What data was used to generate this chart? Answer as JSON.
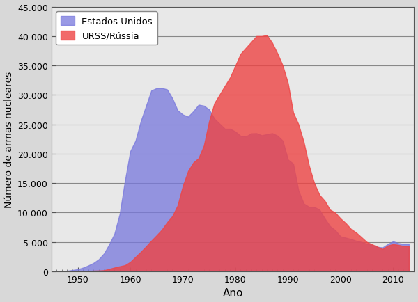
{
  "title": "",
  "xlabel": "Ano",
  "ylabel": "Número de armas nucleares",
  "background_color": "#d8d8d8",
  "plot_background_color": "#e8e8e8",
  "us_color": "#7777dd",
  "us_alpha": 0.75,
  "russia_color": "#ee4444",
  "russia_alpha": 0.8,
  "legend_us": "Estados Unidos",
  "legend_russia": "URSS/Rússia",
  "ylim": [
    0,
    45000
  ],
  "xlim": [
    1945,
    2014
  ],
  "yticks": [
    0,
    5000,
    10000,
    15000,
    20000,
    25000,
    30000,
    35000,
    40000,
    45000
  ],
  "xticks": [
    1950,
    1960,
    1970,
    1980,
    1990,
    2000,
    2010
  ],
  "us_years": [
    1945,
    1946,
    1947,
    1948,
    1949,
    1950,
    1951,
    1952,
    1953,
    1954,
    1955,
    1956,
    1957,
    1958,
    1959,
    1960,
    1961,
    1962,
    1963,
    1964,
    1965,
    1966,
    1967,
    1968,
    1969,
    1970,
    1971,
    1972,
    1973,
    1974,
    1975,
    1976,
    1977,
    1978,
    1979,
    1980,
    1981,
    1982,
    1983,
    1984,
    1985,
    1986,
    1987,
    1988,
    1989,
    1990,
    1991,
    1992,
    1993,
    1994,
    1995,
    1996,
    1997,
    1998,
    1999,
    2000,
    2001,
    2002,
    2003,
    2004,
    2005,
    2006,
    2007,
    2008,
    2009,
    2010,
    2011,
    2012,
    2013
  ],
  "us_values": [
    6,
    11,
    32,
    110,
    235,
    369,
    640,
    1005,
    1436,
    2063,
    3057,
    4618,
    6444,
    9822,
    15468,
    20434,
    22229,
    25540,
    28133,
    30751,
    31139,
    31175,
    30933,
    29455,
    27387,
    26662,
    26316,
    27227,
    28335,
    28170,
    27519,
    25956,
    25099,
    24243,
    24243,
    23764,
    23031,
    22937,
    23458,
    23490,
    23135,
    23317,
    23490,
    23077,
    22217,
    19008,
    18306,
    13731,
    11536,
    10979,
    10953,
    10500,
    9000,
    7700,
    7000,
    5959,
    5735,
    5500,
    5200,
    4996,
    4700,
    4500,
    4168,
    4075,
    4650,
    5113,
    4802,
    4650,
    4650
  ],
  "russia_years": [
    1949,
    1950,
    1951,
    1952,
    1953,
    1954,
    1955,
    1956,
    1957,
    1958,
    1959,
    1960,
    1961,
    1962,
    1963,
    1964,
    1965,
    1966,
    1967,
    1968,
    1969,
    1970,
    1971,
    1972,
    1973,
    1974,
    1975,
    1976,
    1977,
    1978,
    1979,
    1980,
    1981,
    1982,
    1983,
    1984,
    1985,
    1986,
    1987,
    1988,
    1989,
    1990,
    1991,
    1992,
    1993,
    1994,
    1995,
    1996,
    1997,
    1998,
    1999,
    2000,
    2001,
    2002,
    2003,
    2004,
    2005,
    2006,
    2007,
    2008,
    2009,
    2010,
    2011,
    2012,
    2013
  ],
  "russia_values": [
    1,
    5,
    25,
    50,
    120,
    150,
    200,
    426,
    660,
    869,
    1060,
    1605,
    2471,
    3322,
    4238,
    5221,
    6129,
    7089,
    8339,
    9399,
    11200,
    14518,
    17053,
    18508,
    19255,
    21385,
    25534,
    28595,
    30062,
    31552,
    33000,
    35000,
    37000,
    38000,
    39000,
    40000,
    40000,
    40159,
    38859,
    37050,
    35000,
    32000,
    27000,
    25000,
    22000,
    18000,
    15000,
    13000,
    12000,
    10500,
    10000,
    9000,
    8200,
    7200,
    6600,
    5800,
    5000,
    4600,
    4200,
    3800,
    4400,
    4630,
    4500,
    4300,
    4300
  ]
}
